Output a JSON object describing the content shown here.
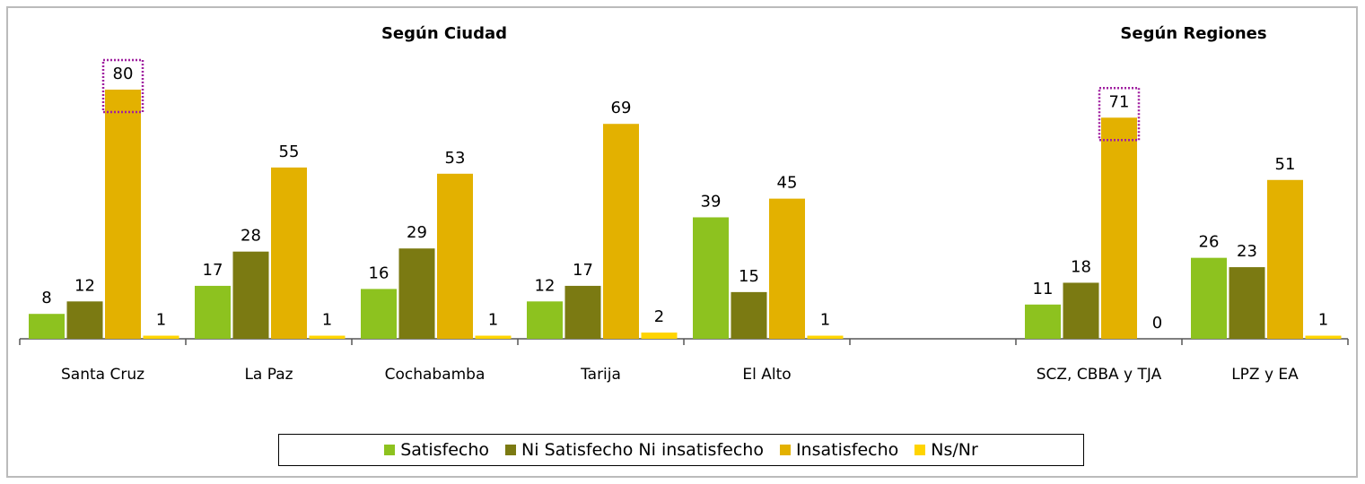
{
  "chart_data": {
    "type": "bar",
    "annotations": [
      "Según Ciudad",
      "Según Regiones"
    ],
    "categories": [
      "Santa Cruz",
      "La Paz",
      "Cochabamba",
      "Tarija",
      "El Alto",
      null,
      "SCZ, CBBA y TJA",
      "LPZ y EA"
    ],
    "series": [
      {
        "name": "Satisfecho",
        "color": "#8dc21f",
        "values": [
          8,
          17,
          16,
          12,
          39,
          null,
          11,
          26
        ]
      },
      {
        "name": "Ni Satisfecho Ni insatisfecho",
        "color": "#7b7a12",
        "values": [
          12,
          28,
          29,
          17,
          15,
          null,
          18,
          23
        ]
      },
      {
        "name": "Insatisfecho",
        "color": "#e3b100",
        "values": [
          80,
          55,
          53,
          69,
          45,
          null,
          71,
          51
        ]
      },
      {
        "name": "Ns/Nr",
        "color": "#ffd400",
        "values": [
          1,
          1,
          1,
          2,
          1,
          null,
          0,
          1
        ]
      }
    ],
    "ylim": [
      0,
      100
    ],
    "highlighted": [
      {
        "series": 2,
        "index": 0
      },
      {
        "series": 2,
        "index": 6
      }
    ],
    "legend": "bottom"
  }
}
